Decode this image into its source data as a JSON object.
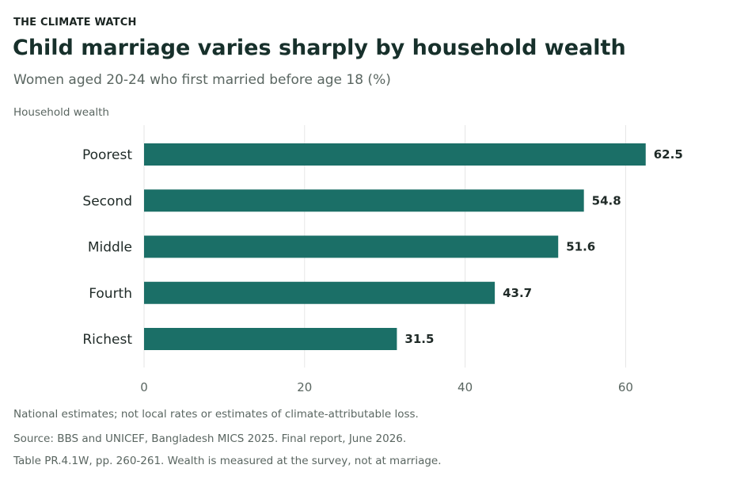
{
  "header": {
    "kicker": "THE CLIMATE WATCH",
    "title": "Child marriage varies sharply by household wealth",
    "subtitle": "Women aged 20-24 who first married before age 18 (%)",
    "axis_caption": "Household wealth"
  },
  "footer": {
    "note": "National estimates; not local rates or estimates of climate-attributable loss.",
    "source": "Source: BBS and UNICEF, Bangladesh MICS 2025. Final report, June 2026.",
    "table_note": "Table PR.4.1W, pp. 260-261. Wealth is measured at the survey, not at marriage."
  },
  "colors": {
    "bar": "#1b6f67",
    "grid": "#e6e6e6",
    "text": "#1f2a27",
    "muted": "#5a6661"
  },
  "chart_data": {
    "type": "bar",
    "orientation": "horizontal",
    "categories": [
      "Poorest",
      "Second",
      "Middle",
      "Fourth",
      "Richest"
    ],
    "values": [
      62.5,
      54.8,
      51.6,
      43.7,
      31.5
    ],
    "value_labels": [
      "62.5",
      "54.8",
      "51.6",
      "43.7",
      "31.5"
    ],
    "xlim": [
      0,
      66
    ],
    "xticks": [
      0,
      20,
      40,
      60
    ],
    "xtick_labels": [
      "0",
      "20",
      "40",
      "60"
    ],
    "ylabel": "Household wealth",
    "grid": "vertical",
    "legend": "none"
  }
}
